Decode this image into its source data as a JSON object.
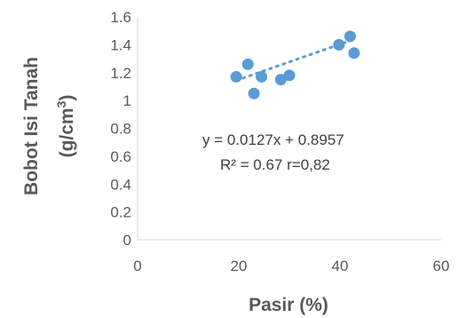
{
  "chart_data": {
    "type": "scatter",
    "xlabel": "Pasir (%)",
    "ylabel_line1": "Bobot Isi Tanah",
    "ylabel_line2": "(g/cm",
    "ylabel_sup": "3",
    "ylabel_close": ")",
    "xlim": [
      0,
      60
    ],
    "ylim": [
      0,
      1.6
    ],
    "xticks": [
      "0",
      "20",
      "40",
      "60"
    ],
    "yticks": [
      "0",
      "0.2",
      "0.4",
      "0.6",
      "0.8",
      "1",
      "1.2",
      "1.4",
      "1.6"
    ],
    "points": [
      {
        "x": 19.5,
        "y": 1.17
      },
      {
        "x": 21.8,
        "y": 1.26
      },
      {
        "x": 23.0,
        "y": 1.05
      },
      {
        "x": 24.5,
        "y": 1.17
      },
      {
        "x": 28.3,
        "y": 1.15
      },
      {
        "x": 30.0,
        "y": 1.18
      },
      {
        "x": 39.8,
        "y": 1.4
      },
      {
        "x": 42.0,
        "y": 1.46
      },
      {
        "x": 42.8,
        "y": 1.34
      }
    ],
    "trendline": {
      "slope": 0.0127,
      "intercept": 0.8957,
      "x_range": [
        19.5,
        42.8
      ],
      "style": "dotted"
    },
    "equation_text": "y = 0.0127x + 0.8957",
    "r2_text": "R² = 0.67  r=0,82",
    "grid": false,
    "marker_color": "#5B9BD5",
    "axis_color": "#D9D9D9",
    "text_color": "#595959"
  }
}
